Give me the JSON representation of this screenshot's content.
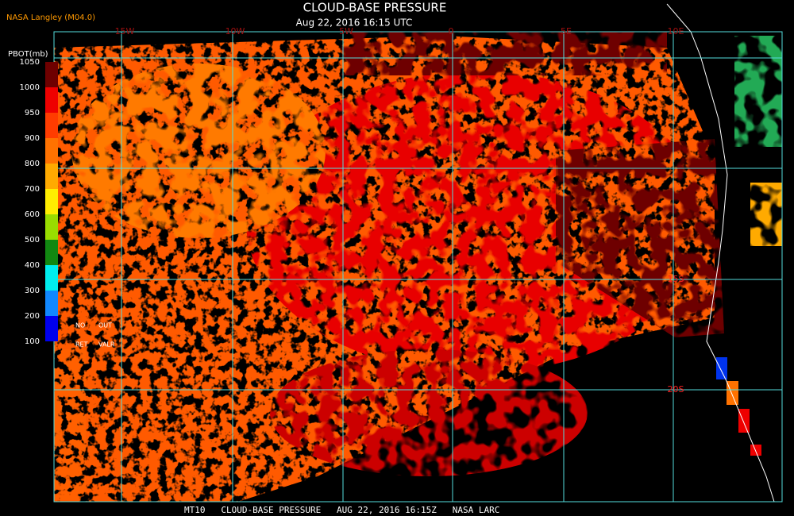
{
  "header": {
    "source": "NASA Langley (M04.0)",
    "title": "CLOUD-BASE PRESSURE",
    "time": "Aug 22, 2016 16:15 UTC"
  },
  "map": {
    "lon_labels": [
      "15W",
      "10W",
      "5W",
      "0",
      "5E",
      "10E"
    ],
    "lat_labels": [
      "15S",
      "20S"
    ]
  },
  "legend": {
    "title": "PBOT(mb)",
    "ticks": [
      1050,
      1000,
      950,
      900,
      800,
      700,
      600,
      500,
      400,
      300,
      200,
      100
    ],
    "colors": [
      "#6e0000",
      "#ee0000",
      "#ff3c00",
      "#ff7200",
      "#ffaa00",
      "#ffee00",
      "#99dd00",
      "#118811",
      "#00eeee",
      "#1188ff",
      "#0000ee",
      "#8833dd"
    ],
    "notes": [
      "NO",
      "OUT",
      "RET",
      "VALR"
    ]
  },
  "footer": "MT10   CLOUD-BASE PRESSURE   AUG 22, 2016 16:15Z   NASA LARC"
}
